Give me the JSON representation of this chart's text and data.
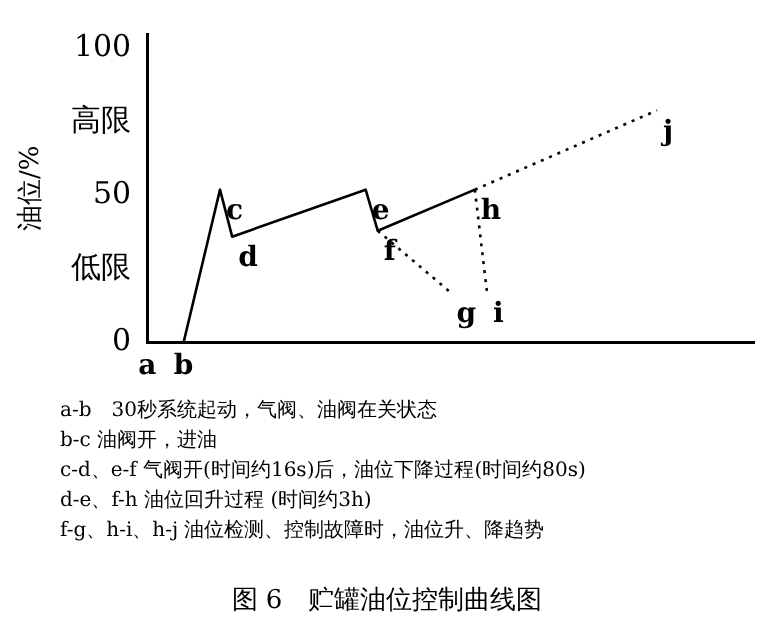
{
  "chart_data": {
    "type": "line",
    "title": "图 6　贮罐油位控制曲线图",
    "ylabel": "油位/%",
    "categories": [
      "a",
      null,
      null,
      "b",
      null,
      null,
      null,
      null,
      null,
      null,
      null,
      null,
      null,
      null,
      null,
      null,
      null,
      null,
      null,
      null,
      null,
      null,
      null,
      null,
      null,
      null,
      null,
      null,
      null,
      null,
      null,
      null,
      null,
      null,
      null,
      null,
      null,
      null,
      null,
      null,
      null,
      null,
      null,
      null,
      null,
      null,
      null,
      null,
      null,
      null,
      null
    ],
    "ylim": [
      0,
      105
    ],
    "yticks": [
      0,
      {
        "value": 25,
        "label": "低限"
      },
      50,
      {
        "value": 75,
        "label": "高限"
      },
      100
    ],
    "grid": false,
    "legend": false,
    "marker": "none",
    "series": [
      {
        "color": "#000000",
        "line_style": "solid",
        "values": [
          0,
          null,
          null,
          0,
          null,
          null,
          52,
          36,
          null,
          null,
          null,
          null,
          null,
          null,
          null,
          null,
          null,
          null,
          52,
          38,
          null,
          null,
          null,
          null,
          null,
          null,
          null,
          52,
          null,
          null,
          null,
          null,
          null,
          null,
          null,
          null,
          null,
          null,
          null,
          null,
          null,
          null,
          null,
          null,
          null,
          null,
          null,
          null,
          null,
          null,
          null
        ],
        "value_labels": [
          null,
          null,
          null,
          null,
          null,
          null,
          "c",
          "d",
          null,
          null,
          null,
          null,
          null,
          null,
          null,
          null,
          null,
          null,
          "e",
          "f",
          null,
          null,
          null,
          null,
          null,
          null,
          null,
          "h",
          null,
          null,
          null,
          null,
          null,
          null,
          null,
          null,
          null,
          null,
          null,
          null,
          null,
          null,
          null,
          null,
          null,
          null,
          null,
          null,
          null,
          null,
          null
        ]
      },
      {
        "color": "#000000",
        "line_style": "dotted",
        "values": [
          null,
          null,
          null,
          null,
          null,
          null,
          null,
          null,
          null,
          null,
          null,
          null,
          null,
          null,
          null,
          null,
          null,
          null,
          null,
          38,
          null,
          null,
          null,
          null,
          null,
          17,
          null,
          null,
          null,
          null,
          null,
          null,
          null,
          null,
          null,
          null,
          null,
          null,
          null,
          null,
          null,
          null,
          null,
          null,
          null,
          null,
          null,
          null,
          null,
          null,
          null
        ],
        "value_labels": [
          null,
          null,
          null,
          null,
          null,
          null,
          null,
          null,
          null,
          null,
          null,
          null,
          null,
          null,
          null,
          null,
          null,
          null,
          null,
          null,
          null,
          null,
          null,
          null,
          null,
          "g",
          null,
          null,
          null,
          null,
          null,
          null,
          null,
          null,
          null,
          null,
          null,
          null,
          null,
          null,
          null,
          null,
          null,
          null,
          null,
          null,
          null,
          null,
          null,
          null,
          null
        ]
      },
      {
        "color": "#000000",
        "line_style": "dotted",
        "values": [
          null,
          null,
          null,
          null,
          null,
          null,
          null,
          null,
          null,
          null,
          null,
          null,
          null,
          null,
          null,
          null,
          null,
          null,
          null,
          null,
          null,
          null,
          null,
          null,
          null,
          null,
          null,
          52,
          17,
          null,
          null,
          null,
          null,
          null,
          null,
          null,
          null,
          null,
          null,
          null,
          null,
          null,
          null,
          null,
          null,
          null,
          null,
          null,
          null,
          null,
          null
        ],
        "value_labels": [
          null,
          null,
          null,
          null,
          null,
          null,
          null,
          null,
          null,
          null,
          null,
          null,
          null,
          null,
          null,
          null,
          null,
          null,
          null,
          null,
          null,
          null,
          null,
          null,
          null,
          null,
          null,
          null,
          "i",
          null,
          null,
          null,
          null,
          null,
          null,
          null,
          null,
          null,
          null,
          null,
          null,
          null,
          null,
          null,
          null,
          null,
          null,
          null,
          null,
          null,
          null
        ]
      },
      {
        "color": "#000000",
        "line_style": "dotted",
        "values": [
          null,
          null,
          null,
          null,
          null,
          null,
          null,
          null,
          null,
          null,
          null,
          null,
          null,
          null,
          null,
          null,
          null,
          null,
          null,
          null,
          null,
          null,
          null,
          null,
          null,
          null,
          null,
          52,
          null,
          null,
          null,
          null,
          null,
          null,
          null,
          null,
          null,
          null,
          null,
          null,
          null,
          null,
          79,
          null,
          null,
          null,
          null,
          null,
          null,
          null,
          null
        ],
        "value_labels": [
          null,
          null,
          null,
          null,
          null,
          null,
          null,
          null,
          null,
          null,
          null,
          null,
          null,
          null,
          null,
          null,
          null,
          null,
          null,
          null,
          null,
          null,
          null,
          null,
          null,
          null,
          null,
          null,
          null,
          null,
          null,
          null,
          null,
          null,
          null,
          null,
          null,
          null,
          null,
          null,
          null,
          null,
          "j",
          null,
          null,
          null,
          null,
          null,
          null,
          null,
          null
        ]
      }
    ],
    "annotations": [
      "a-b　30秒系统起动，气阀、油阀在关状态",
      "b-c 油阀开，进油",
      "c-d、e-f 气阀开(时间约16s)后，油位下降过程(时间约80s)",
      "d-e、f-h 油位回升过程 (时间约3h)",
      "f-g、h-i、h-j 油位检测、控制故障时，油位升、降趋势"
    ]
  }
}
